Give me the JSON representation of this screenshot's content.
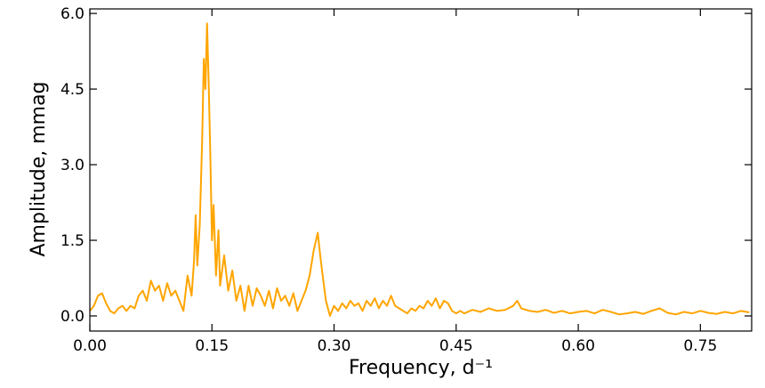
{
  "chart_data": {
    "type": "line",
    "xlabel": "Frequency, d⁻¹",
    "ylabel": "Amplitude, mmag",
    "color": "#ffa500",
    "xlim": [
      0,
      0.813
    ],
    "ylim": [
      -0.3,
      6.09
    ],
    "xticks": [
      {
        "value": 0,
        "label": "0.00"
      },
      0.15,
      {
        "value": 0.3,
        "label": "0.30"
      },
      0.45,
      {
        "value": 0.6,
        "label": "0.60"
      },
      0.75
    ],
    "yticks": [
      {
        "value": 0,
        "label": "0.0"
      },
      1.5,
      {
        "value": 3,
        "label": "3.0"
      },
      4.5,
      {
        "value": 6,
        "label": "6.0"
      }
    ],
    "x": [
      0,
      0.005,
      0.01,
      0.015,
      0.02,
      0.025,
      0.03,
      0.035,
      0.04,
      0.045,
      0.05,
      0.055,
      0.06,
      0.065,
      0.07,
      0.075,
      0.08,
      0.085,
      0.09,
      0.095,
      0.1,
      0.105,
      0.11,
      0.115,
      0.12,
      0.125,
      0.128,
      0.13,
      0.132,
      0.135,
      0.138,
      0.14,
      0.142,
      0.144,
      0.146,
      0.148,
      0.15,
      0.152,
      0.155,
      0.158,
      0.16,
      0.165,
      0.17,
      0.175,
      0.18,
      0.185,
      0.19,
      0.195,
      0.2,
      0.205,
      0.21,
      0.215,
      0.22,
      0.225,
      0.23,
      0.235,
      0.24,
      0.245,
      0.25,
      0.255,
      0.26,
      0.265,
      0.27,
      0.275,
      0.28,
      0.283,
      0.286,
      0.29,
      0.295,
      0.3,
      0.305,
      0.31,
      0.315,
      0.32,
      0.325,
      0.33,
      0.335,
      0.34,
      0.345,
      0.35,
      0.355,
      0.36,
      0.365,
      0.37,
      0.375,
      0.38,
      0.385,
      0.39,
      0.395,
      0.4,
      0.405,
      0.41,
      0.415,
      0.42,
      0.425,
      0.43,
      0.435,
      0.44,
      0.445,
      0.45,
      0.455,
      0.46,
      0.47,
      0.48,
      0.49,
      0.5,
      0.51,
      0.52,
      0.525,
      0.53,
      0.54,
      0.55,
      0.56,
      0.57,
      0.58,
      0.59,
      0.6,
      0.61,
      0.62,
      0.63,
      0.64,
      0.65,
      0.66,
      0.67,
      0.68,
      0.69,
      0.7,
      0.71,
      0.72,
      0.73,
      0.74,
      0.75,
      0.76,
      0.77,
      0.78,
      0.79,
      0.8,
      0.81
    ],
    "values": [
      0.1,
      0.2,
      0.4,
      0.45,
      0.25,
      0.1,
      0.05,
      0.15,
      0.2,
      0.1,
      0.2,
      0.15,
      0.4,
      0.5,
      0.3,
      0.7,
      0.5,
      0.6,
      0.3,
      0.65,
      0.4,
      0.5,
      0.3,
      0.1,
      0.8,
      0.4,
      1.1,
      2.0,
      1.0,
      1.8,
      3.5,
      5.1,
      4.5,
      5.8,
      4.6,
      3.2,
      1.5,
      2.2,
      0.8,
      1.7,
      0.6,
      1.2,
      0.5,
      0.9,
      0.3,
      0.6,
      0.1,
      0.6,
      0.2,
      0.55,
      0.4,
      0.2,
      0.5,
      0.15,
      0.55,
      0.3,
      0.4,
      0.2,
      0.45,
      0.1,
      0.3,
      0.5,
      0.8,
      1.3,
      1.65,
      1.2,
      0.8,
      0.3,
      0.0,
      0.2,
      0.1,
      0.25,
      0.15,
      0.3,
      0.2,
      0.25,
      0.1,
      0.3,
      0.2,
      0.35,
      0.15,
      0.3,
      0.2,
      0.4,
      0.2,
      0.15,
      0.1,
      0.05,
      0.15,
      0.1,
      0.2,
      0.15,
      0.3,
      0.2,
      0.35,
      0.15,
      0.3,
      0.25,
      0.1,
      0.05,
      0.1,
      0.05,
      0.12,
      0.08,
      0.15,
      0.1,
      0.12,
      0.2,
      0.3,
      0.15,
      0.1,
      0.08,
      0.12,
      0.06,
      0.1,
      0.05,
      0.08,
      0.1,
      0.05,
      0.12,
      0.08,
      0.03,
      0.05,
      0.08,
      0.04,
      0.1,
      0.15,
      0.06,
      0.03,
      0.08,
      0.05,
      0.1,
      0.06,
      0.04,
      0.08,
      0.05,
      0.1,
      0.07
    ]
  }
}
